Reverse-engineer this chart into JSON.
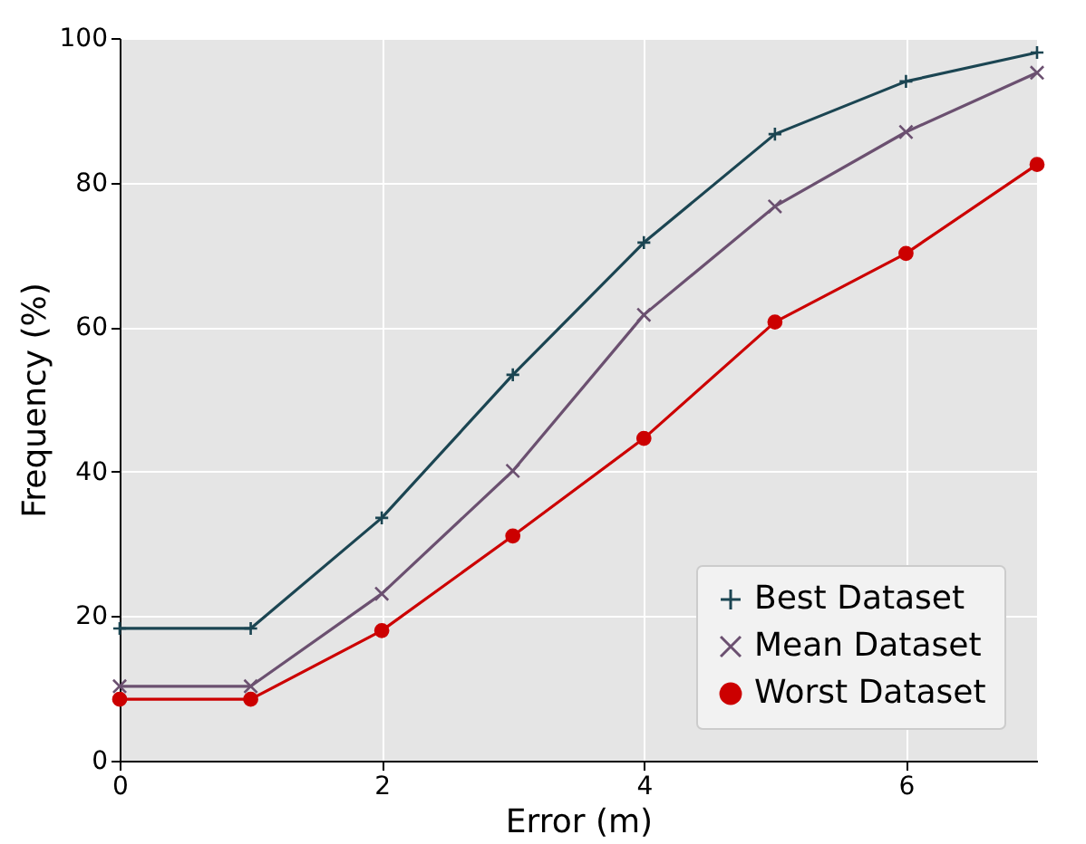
{
  "chart_data": {
    "type": "line",
    "xlabel": "Error (m)",
    "ylabel": "Frequency (%)",
    "x": [
      0,
      1,
      2,
      3,
      4,
      5,
      6,
      7
    ],
    "series": [
      {
        "name": "Best Dataset",
        "color": "#1b4552",
        "marker": "plus",
        "values": [
          18.3,
          18.3,
          33.6,
          53.4,
          71.7,
          86.7,
          94.0,
          98.0
        ]
      },
      {
        "name": "Mean Dataset",
        "color": "#6b5070",
        "marker": "cross",
        "values": [
          10.3,
          10.3,
          23.1,
          40.1,
          61.7,
          76.7,
          87.0,
          95.2
        ]
      },
      {
        "name": "Worst Dataset",
        "color": "#cc0000",
        "marker": "circle",
        "values": [
          8.5,
          8.5,
          18.0,
          31.1,
          44.6,
          60.7,
          70.2,
          82.5
        ]
      }
    ],
    "xlim": [
      0,
      7
    ],
    "xticks": [
      0,
      2,
      4,
      6
    ],
    "ylim": [
      0,
      100
    ],
    "yticks": [
      0,
      20,
      40,
      60,
      80,
      100
    ],
    "grid": true,
    "legend": "bottom right",
    "line_style": "solid"
  }
}
